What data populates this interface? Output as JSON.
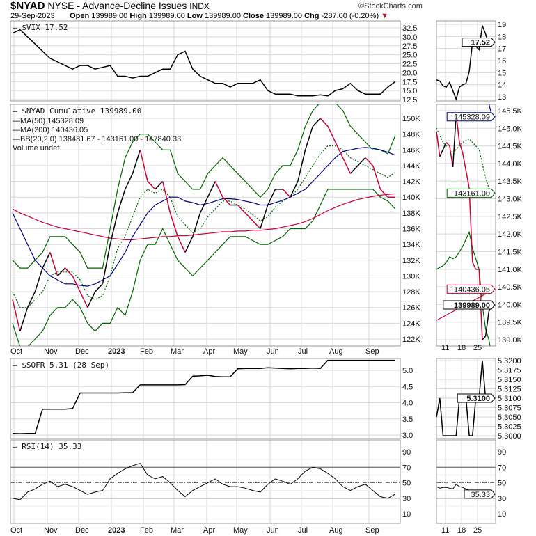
{
  "header": {
    "symbol": "$NYAD",
    "title": "NYSE - Advance-Decline Issues",
    "exchange": "INDX",
    "brand": "©StockCharts.com",
    "date": "29-Sep-2023",
    "open_label": "Open",
    "open": "139989.00",
    "high_label": "High",
    "high": "139989.00",
    "low_label": "Low",
    "low": "139989.00",
    "close_label": "Close",
    "close": "139989.00",
    "chg_label": "Chg",
    "chg": "-287.00 (-0.20%)",
    "chg_arrow": "▼"
  },
  "legends": {
    "vix": "— $VIX 17.52",
    "nyad": "— $NYAD Cumulative 139989.00",
    "ma50": "—MA(50) 145328.09",
    "ma200": "—MA(200) 140436.05",
    "bb": "—BB(20,2.0) 138481.67 - 143161.00 - 147840.33",
    "volume": "Volume undef",
    "sofr": "— $SOFR 5.31 (28 Sep)",
    "rsi": "— RSI(14) 35.33"
  },
  "colors": {
    "price_up": "#000000",
    "price_down": "#cc0033",
    "ma50": "#000080",
    "ma200": "#cc0033",
    "bb": "#006600",
    "grid": "#d8d8d8"
  },
  "x_labels": [
    "Oct",
    "Nov",
    "Dec",
    "2023",
    "Feb",
    "Mar",
    "Apr",
    "May",
    "Jun",
    "Jul",
    "Aug",
    "Sep"
  ],
  "zoom_x_labels": [
    "11",
    "18",
    "25"
  ],
  "chart_data": [
    {
      "type": "line",
      "panel": "main-weekly",
      "x": [
        "2022-10-07",
        "2022-10-14",
        "2022-10-21",
        "2022-10-28",
        "2022-11-04",
        "2022-11-11",
        "2022-11-18",
        "2022-11-25",
        "2022-12-02",
        "2022-12-09",
        "2022-12-16",
        "2022-12-23",
        "2022-12-30",
        "2023-01-06",
        "2023-01-13",
        "2023-01-20",
        "2023-01-27",
        "2023-02-03",
        "2023-02-10",
        "2023-02-17",
        "2023-02-24",
        "2023-03-03",
        "2023-03-10",
        "2023-03-17",
        "2023-03-24",
        "2023-03-31",
        "2023-04-07",
        "2023-04-14",
        "2023-04-21",
        "2023-04-28",
        "2023-05-05",
        "2023-05-12",
        "2023-05-19",
        "2023-05-26",
        "2023-06-02",
        "2023-06-09",
        "2023-06-16",
        "2023-06-23",
        "2023-06-30",
        "2023-07-07",
        "2023-07-14",
        "2023-07-21",
        "2023-07-28",
        "2023-08-04",
        "2023-08-11",
        "2023-08-18",
        "2023-08-25",
        "2023-09-01",
        "2023-09-08",
        "2023-09-15",
        "2023-09-22",
        "2023-09-29"
      ],
      "vix": {
        "ticks": [
          12.5,
          15,
          17.5,
          20,
          22.5,
          25,
          27.5,
          30,
          32.5
        ],
        "values": [
          31,
          32,
          30,
          28,
          26,
          24,
          23,
          22,
          21,
          22,
          22,
          21,
          21.5,
          22,
          19,
          19,
          18.5,
          19,
          19,
          20,
          21,
          21,
          25,
          26,
          21,
          19,
          18,
          17,
          17,
          16,
          17,
          17,
          17,
          18,
          15,
          14,
          14,
          14,
          13.5,
          13.5,
          13.5,
          13.8,
          13.5,
          15,
          15.5,
          17,
          15,
          14,
          14,
          14,
          16,
          17.52
        ]
      },
      "nyad": {
        "unit": "K",
        "ticks": [
          122,
          124,
          126,
          128,
          130,
          132,
          134,
          136,
          138,
          140,
          142,
          144,
          146,
          148,
          150
        ],
        "values": [
          127,
          123,
          126,
          128,
          131,
          133,
          130,
          131,
          130,
          128,
          126,
          128,
          129,
          134,
          138,
          141,
          143,
          146,
          142,
          141,
          142,
          138,
          135,
          133,
          135,
          138,
          140,
          142,
          140,
          139,
          139,
          138,
          137,
          136,
          139,
          141,
          141,
          140,
          142,
          146,
          149,
          150,
          149,
          147,
          145,
          143,
          144,
          145,
          144,
          141,
          140,
          139.989
        ],
        "ma50": [
          138,
          136,
          134,
          132,
          131,
          130,
          129.5,
          129,
          129,
          128.8,
          128.7,
          129,
          129.5,
          130,
          131.5,
          133,
          135,
          136.5,
          138,
          139,
          139.5,
          140,
          140,
          139.5,
          139.3,
          139,
          139.2,
          139.5,
          139.8,
          139.8,
          139.7,
          139.5,
          139.3,
          139,
          139,
          139.3,
          139.6,
          140,
          140.5,
          141,
          142,
          143,
          144,
          145,
          145.8,
          146,
          146.2,
          146.3,
          146.2,
          146,
          145.7,
          145.328
        ],
        "ma200": [
          138.5,
          138,
          137.6,
          137.2,
          136.8,
          136.5,
          136.2,
          136,
          135.8,
          135.6,
          135.4,
          135.2,
          135,
          134.8,
          134.7,
          134.6,
          134.6,
          134.7,
          134.8,
          134.9,
          135,
          135,
          135.1,
          135.1,
          135.2,
          135.3,
          135.4,
          135.5,
          135.6,
          135.6,
          135.7,
          135.7,
          135.8,
          135.8,
          135.9,
          136,
          136.2,
          136.4,
          136.6,
          136.9,
          137.3,
          137.8,
          138.3,
          138.7,
          139.1,
          139.4,
          139.7,
          139.9,
          140.1,
          140.25,
          140.35,
          140.436
        ],
        "bb_upper": [
          132,
          131,
          131,
          132,
          133,
          135,
          135,
          135,
          134,
          133,
          131,
          131,
          131,
          136,
          141,
          145,
          147,
          148,
          148,
          147,
          146,
          146,
          143,
          142,
          141,
          141,
          143,
          144,
          145,
          144,
          143,
          142,
          141,
          140,
          141,
          143,
          144,
          144,
          146,
          149,
          151,
          152,
          152,
          152,
          151,
          149,
          148,
          147,
          146,
          146,
          145.5,
          147.84
        ],
        "bb_lower": [
          124,
          121,
          121,
          122,
          123,
          125,
          126,
          126,
          127,
          126,
          124,
          123,
          124,
          124,
          126,
          125,
          128,
          132,
          134,
          134,
          136,
          134,
          132,
          131,
          130,
          131,
          132,
          133,
          134,
          135,
          135,
          135,
          134.5,
          134,
          134,
          134.5,
          135,
          136,
          136,
          136,
          137,
          139,
          141,
          141,
          141,
          141,
          141,
          141,
          141,
          140,
          139.5,
          138.48
        ]
      },
      "sofr": {
        "ticks": [
          3.0,
          3.5,
          4.0,
          4.5,
          5.0
        ],
        "values": [
          3.05,
          3.04,
          3.05,
          3.05,
          3.8,
          3.8,
          3.8,
          3.8,
          3.82,
          4.3,
          4.3,
          4.3,
          4.3,
          4.3,
          4.3,
          4.31,
          4.31,
          4.55,
          4.55,
          4.55,
          4.55,
          4.55,
          4.55,
          4.56,
          4.82,
          4.83,
          4.85,
          4.81,
          4.8,
          4.8,
          5.05,
          5.06,
          5.06,
          5.06,
          5.08,
          5.07,
          5.06,
          5.05,
          5.06,
          5.06,
          5.07,
          5.06,
          5.31,
          5.31,
          5.31,
          5.31,
          5.31,
          5.31,
          5.31,
          5.31,
          5.31,
          5.31
        ]
      },
      "rsi": {
        "ticks": [
          10,
          30,
          50,
          70,
          90
        ],
        "values": [
          30,
          28,
          38,
          42,
          48,
          52,
          45,
          48,
          45,
          40,
          35,
          38,
          40,
          55,
          62,
          68,
          72,
          75,
          60,
          55,
          58,
          50,
          40,
          32,
          40,
          45,
          50,
          55,
          48,
          45,
          45,
          43,
          40,
          38,
          48,
          55,
          52,
          48,
          55,
          65,
          70,
          68,
          62,
          55,
          45,
          40,
          45,
          48,
          40,
          32,
          30,
          35.33
        ]
      }
    },
    {
      "type": "line",
      "panel": "zoom-daily",
      "x": [
        "2023-09-06",
        "2023-09-07",
        "2023-09-08",
        "2023-09-11",
        "2023-09-12",
        "2023-09-13",
        "2023-09-14",
        "2023-09-15",
        "2023-09-18",
        "2023-09-19",
        "2023-09-20",
        "2023-09-21",
        "2023-09-22",
        "2023-09-25",
        "2023-09-26",
        "2023-09-27",
        "2023-09-28",
        "2023-09-29"
      ],
      "vix": {
        "ticks": [
          13,
          14,
          15,
          16,
          17,
          18,
          19
        ],
        "last": "17.52",
        "values": [
          14.4,
          14.3,
          13.9,
          13.8,
          14.2,
          13.5,
          12.8,
          13.8,
          14.0,
          14.1,
          15.1,
          17.5,
          17.2,
          16.9,
          18.9,
          18.2,
          17.3,
          17.52
        ]
      },
      "nyad": {
        "unit": "K",
        "ticks": [
          139.0,
          139.5,
          140.0,
          140.5,
          141.0,
          141.5,
          142.0,
          142.5,
          143.0,
          143.5,
          144.0,
          144.5,
          145.0,
          145.5
        ],
        "last": "139989.00",
        "last_ma50": "145328.09",
        "last_ma200": "140436.05",
        "last_bb_mid": "143161.00",
        "values": [
          144.9,
          144.2,
          144.4,
          144.6,
          144.5,
          143.9,
          145.4,
          144.6,
          144.3,
          143.8,
          143.3,
          141.2,
          141.0,
          141.0,
          139.0,
          139.1,
          139.8,
          139.989
        ],
        "ma50": [
          null,
          null,
          null,
          null,
          null,
          null,
          null,
          null,
          null,
          null,
          null,
          null,
          null,
          null,
          null,
          146.2,
          145.7,
          145.328
        ],
        "ma200": [
          139.55,
          139.6,
          139.65,
          139.7,
          139.75,
          139.8,
          139.85,
          139.9,
          139.95,
          140.0,
          140.05,
          140.1,
          140.15,
          140.2,
          140.25,
          140.3,
          140.37,
          140.436
        ],
        "bb_mid": [
          145.0,
          144.8,
          144.6,
          144.5,
          144.4,
          144.3,
          144.4,
          144.5,
          144.6,
          144.65,
          144.7,
          144.6,
          144.5,
          144.4,
          144.0,
          143.6,
          143.3,
          143.161
        ],
        "bb_lower": [
          141.0,
          141.05,
          141.1,
          141.2,
          141.35,
          141.3,
          141.35,
          141.5,
          141.65,
          141.85,
          142.05,
          141.6,
          141.3,
          141.0,
          140.0,
          139.3,
          139.0,
          138.48
        ]
      },
      "sofr": {
        "ticks": [
          5.3,
          5.3025,
          5.305,
          5.3075,
          5.31,
          5.3125,
          5.315,
          5.3175,
          5.32
        ],
        "last": "5.3100",
        "values": [
          5.305,
          5.31,
          5.3,
          5.3,
          5.3,
          5.3,
          5.3,
          5.31,
          5.31,
          5.31,
          5.3,
          5.3,
          5.31,
          5.31,
          5.32,
          5.31,
          null,
          null
        ]
      },
      "rsi": {
        "ticks": [
          10,
          30,
          50,
          70,
          90
        ],
        "last": "35.33",
        "values": [
          45,
          43,
          44,
          44,
          43,
          42,
          48,
          45,
          44,
          42,
          40,
          36,
          36,
          35,
          30,
          30,
          35,
          35.33
        ]
      }
    }
  ]
}
